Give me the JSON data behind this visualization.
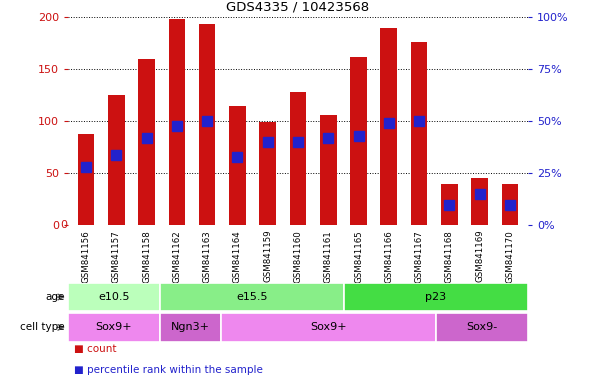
{
  "title": "GDS4335 / 10423568",
  "samples": [
    "GSM841156",
    "GSM841157",
    "GSM841158",
    "GSM841162",
    "GSM841163",
    "GSM841164",
    "GSM841159",
    "GSM841160",
    "GSM841161",
    "GSM841165",
    "GSM841166",
    "GSM841167",
    "GSM841168",
    "GSM841169",
    "GSM841170"
  ],
  "counts": [
    88,
    125,
    160,
    198,
    194,
    115,
    99,
    128,
    106,
    162,
    190,
    176,
    40,
    46,
    40
  ],
  "percentiles": [
    28,
    34,
    42,
    48,
    50,
    33,
    40,
    40,
    42,
    43,
    49,
    50,
    10,
    15,
    10
  ],
  "age_groups": [
    {
      "label": "e10.5",
      "start": 0,
      "end": 3,
      "color": "#bbffbb"
    },
    {
      "label": "e15.5",
      "start": 3,
      "end": 9,
      "color": "#88ee88"
    },
    {
      "label": "p23",
      "start": 9,
      "end": 15,
      "color": "#44dd44"
    }
  ],
  "cell_type_groups": [
    {
      "label": "Sox9+",
      "start": 0,
      "end": 3,
      "color": "#ee88ee"
    },
    {
      "label": "Ngn3+",
      "start": 3,
      "end": 5,
      "color": "#cc66cc"
    },
    {
      "label": "Sox9+",
      "start": 5,
      "end": 12,
      "color": "#ee88ee"
    },
    {
      "label": "Sox9-",
      "start": 12,
      "end": 15,
      "color": "#cc66cc"
    }
  ],
  "left_ylim": [
    0,
    200
  ],
  "right_ylim": [
    0,
    100
  ],
  "left_yticks": [
    0,
    50,
    100,
    150,
    200
  ],
  "right_yticks": [
    0,
    25,
    50,
    75,
    100
  ],
  "right_yticklabels": [
    "0%",
    "25%",
    "50%",
    "75%",
    "100%"
  ],
  "bar_color": "#cc1111",
  "percentile_color": "#2222cc",
  "bg_color": "#d8d8d8",
  "plot_bg": "#ffffff",
  "bar_width": 0.55,
  "marker_size": 7
}
